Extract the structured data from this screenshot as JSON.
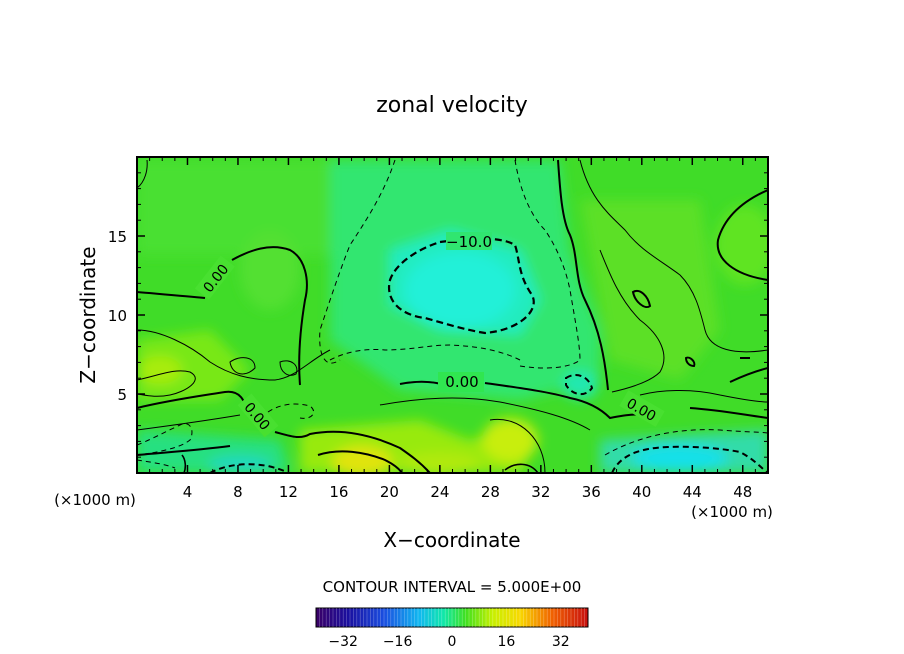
{
  "chart_data": {
    "type": "heatmap",
    "title": "zonal velocity",
    "xlabel": "X−coordinate",
    "ylabel": "Z−coordinate",
    "x_unit": "(×1000 m)",
    "x_unit_right": "(×1000 m)",
    "xlim": [
      0,
      50
    ],
    "ylim": [
      0,
      20
    ],
    "x_ticks": [
      "4",
      "8",
      "12",
      "16",
      "20",
      "24",
      "28",
      "32",
      "36",
      "40",
      "44",
      "48"
    ],
    "x_tick_values": [
      4,
      8,
      12,
      16,
      20,
      24,
      28,
      32,
      36,
      40,
      44,
      48
    ],
    "y_ticks": [
      "5",
      "10",
      "15"
    ],
    "y_tick_values": [
      5,
      10,
      15
    ],
    "contour_interval_text": "CONTOUR INTERVAL = 5.000E+00",
    "contour_labels": [
      "−10.0",
      "0.00",
      "0.00",
      "0.00",
      "0.00"
    ],
    "colorbar": {
      "min": -40,
      "max": 40,
      "tick_labels": [
        "−32",
        "−16",
        "0",
        "16",
        "32"
      ],
      "tick_values": [
        -32,
        -16,
        0,
        16,
        32
      ]
    },
    "field_summary": [
      {
        "region": "broad background",
        "value": 0
      },
      {
        "region": "upper centre minimum",
        "x": 26,
        "z": 12,
        "value": -12
      },
      {
        "region": "lower centre maximum",
        "x": 18,
        "z": 1,
        "value": 14
      },
      {
        "region": "lower centre-right maximum",
        "x": 30,
        "z": 2,
        "value": 10
      },
      {
        "region": "lower right minimum",
        "x": 44,
        "z": 1,
        "value": -14
      },
      {
        "region": "upper right",
        "x": 47,
        "z": 14,
        "value": 4
      }
    ],
    "grid": false
  }
}
